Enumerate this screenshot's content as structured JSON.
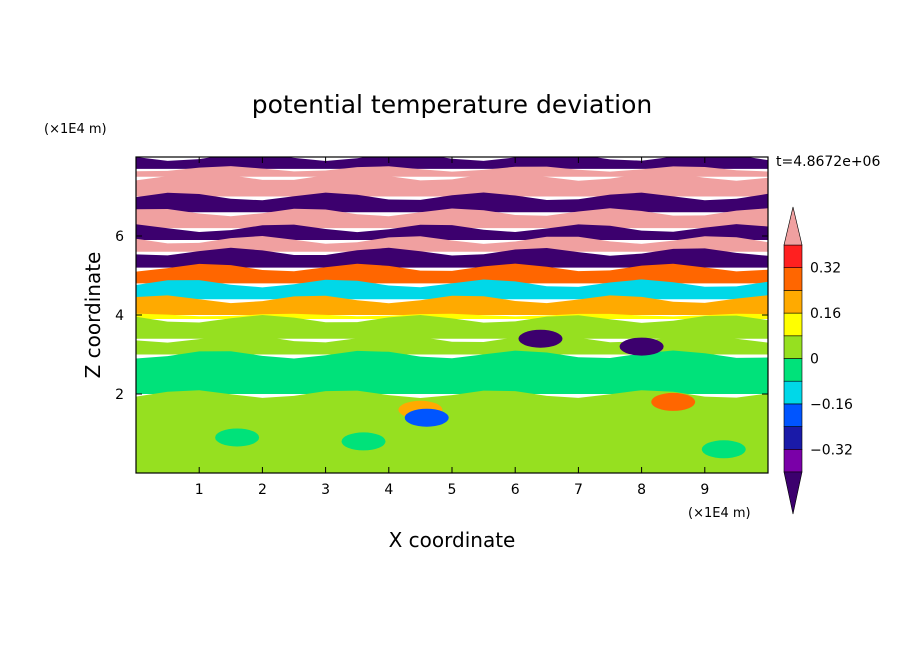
{
  "chart_data": {
    "type": "heatmap",
    "title": "potential temperature deviation",
    "time_label": "t=4.8672e+06",
    "xlabel": "X coordinate",
    "ylabel": "Z coordinate",
    "x_unit": "(×1E4 m)",
    "y_unit": "(×1E4 m)",
    "xlim": [
      0,
      10
    ],
    "ylim": [
      0,
      8
    ],
    "x_ticks": [
      1,
      2,
      3,
      4,
      5,
      6,
      7,
      8,
      9
    ],
    "y_ticks": [
      2,
      4,
      6
    ],
    "colorbar": {
      "levels": [
        -0.4,
        -0.32,
        -0.24,
        -0.16,
        -0.08,
        0,
        0.08,
        0.16,
        0.24,
        0.32,
        0.4
      ],
      "labels": [
        {
          "value": 0.32,
          "text": "0.32"
        },
        {
          "value": 0.16,
          "text": "0.16"
        },
        {
          "value": 0,
          "text": "0"
        },
        {
          "value": -0.16,
          "text": "−0.16"
        },
        {
          "value": -0.32,
          "text": "−0.32"
        }
      ],
      "colors": [
        "#3c006e",
        "#7a00a8",
        "#1a1aa8",
        "#0055ff",
        "#00d8e8",
        "#00e27a",
        "#96e020",
        "#ffff00",
        "#ffaa00",
        "#ff6600",
        "#ff2020",
        "#f0a0a0"
      ],
      "extend": "both"
    },
    "bands": [
      {
        "z": [
          7.7,
          8.0
        ],
        "value": -0.45
      },
      {
        "z": [
          7.5,
          7.7
        ],
        "value": 0.45
      },
      {
        "z": [
          7.0,
          7.5
        ],
        "value": 0.45
      },
      {
        "z": [
          6.6,
          7.0
        ],
        "value": -0.45
      },
      {
        "z": [
          6.2,
          6.6
        ],
        "value": 0.45
      },
      {
        "z": [
          5.9,
          6.2
        ],
        "value": -0.45
      },
      {
        "z": [
          5.6,
          5.9
        ],
        "value": 0.45
      },
      {
        "z": [
          5.2,
          5.6
        ],
        "value": -0.45
      },
      {
        "z": [
          4.8,
          5.2
        ],
        "value": 0.3
      },
      {
        "z": [
          4.4,
          4.8
        ],
        "value": -0.1
      },
      {
        "z": [
          4.0,
          4.4
        ],
        "value": 0.2
      },
      {
        "z": [
          3.9,
          4.0
        ],
        "value": 0.15
      },
      {
        "z": [
          3.4,
          3.9
        ],
        "value": 0.05
      },
      {
        "z": [
          3.0,
          3.4
        ],
        "value": 0.02
      },
      {
        "z": [
          2.0,
          3.0
        ],
        "value": -0.02
      },
      {
        "z": [
          0.0,
          2.0
        ],
        "value": 0.05
      }
    ],
    "blobs": [
      {
        "x": 4.5,
        "z": 1.6,
        "value": 0.2
      },
      {
        "x": 4.6,
        "z": 1.4,
        "value": -0.2
      },
      {
        "x": 8.5,
        "z": 1.8,
        "value": 0.3
      },
      {
        "x": 6.4,
        "z": 3.4,
        "value": -0.45
      },
      {
        "x": 8.0,
        "z": 3.2,
        "value": -0.45
      },
      {
        "x": 3.6,
        "z": 0.8,
        "value": -0.02
      },
      {
        "x": 1.6,
        "z": 0.9,
        "value": -0.02
      },
      {
        "x": 9.3,
        "z": 0.6,
        "value": -0.02
      }
    ]
  }
}
